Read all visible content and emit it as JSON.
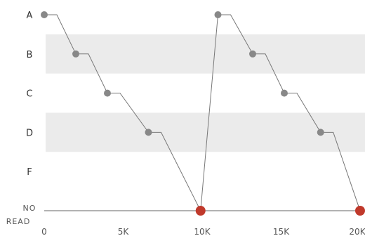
{
  "chart_data": {
    "type": "line",
    "y_categories": [
      "A",
      "B",
      "C",
      "D",
      "F",
      "NO READ"
    ],
    "x_ticks": [
      0,
      5000,
      10000,
      15000,
      20000
    ],
    "x_tick_labels": [
      "0",
      "5K",
      "10K",
      "15K",
      "20K"
    ],
    "xlim": [
      0,
      20000
    ],
    "shaded_bands": [
      "B",
      "D"
    ],
    "series": [
      {
        "points": [
          {
            "x": 0,
            "grade": "A",
            "color": "#888888"
          },
          {
            "x": 2000,
            "grade": "B",
            "color": "#888888"
          },
          {
            "x": 4000,
            "grade": "C",
            "color": "#888888"
          },
          {
            "x": 6600,
            "grade": "D",
            "color": "#888888"
          },
          {
            "x": 9900,
            "grade": "NO READ",
            "color": "#c0392b"
          },
          {
            "x": 11000,
            "grade": "A",
            "color": "#888888"
          },
          {
            "x": 13200,
            "grade": "B",
            "color": "#888888"
          },
          {
            "x": 15200,
            "grade": "C",
            "color": "#888888"
          },
          {
            "x": 17500,
            "grade": "D",
            "color": "#888888"
          },
          {
            "x": 20000,
            "grade": "NO READ",
            "color": "#c0392b"
          }
        ]
      }
    ]
  }
}
